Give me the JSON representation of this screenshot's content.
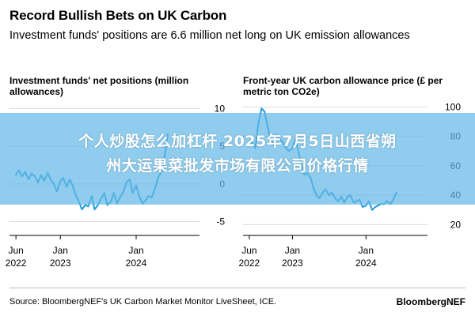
{
  "header": {
    "title": "Record Bullish Bets on UK Carbon",
    "subtitle": "Investment funds' positions are 6.6 million net long on UK emission allowances"
  },
  "banner": {
    "line1": "个人炒股怎么加杠杆 2025年7月5日山西省朔",
    "line2": "州大运果菜批发市场有限公司价格行情"
  },
  "footer": {
    "source": "Source: BloombergNEF's UK Carbon Market Monitor LiveSheet, ICE.",
    "brand": "BloombergNEF"
  },
  "chart_data": [
    {
      "type": "line",
      "title": "Investment funds' net positions (million allowances)",
      "color": "#1f9bde",
      "y_ticks": [
        10,
        5,
        0,
        -5
      ],
      "ylim": [
        -6,
        11
      ],
      "xlim": [
        "2022-05-01",
        "2024-11-01"
      ],
      "x_ticks": [
        {
          "x": "2022-06-01",
          "line1": "Jun",
          "line2": "2022"
        },
        {
          "x": "2023-01-01",
          "line1": "Jan",
          "line2": "2023"
        },
        {
          "x": "2024-01-01",
          "line1": "Jan",
          "line2": "2024"
        }
      ],
      "series": [
        {
          "x": [
            "2022-06-01",
            "2022-06-15",
            "2022-07-01",
            "2022-07-15",
            "2022-08-01",
            "2022-08-15",
            "2022-09-01",
            "2022-09-15",
            "2022-10-01",
            "2022-10-15",
            "2022-11-01",
            "2022-11-15",
            "2022-12-01",
            "2022-12-15",
            "2023-01-01",
            "2023-01-15",
            "2023-02-01",
            "2023-02-15",
            "2023-03-01",
            "2023-03-15",
            "2023-04-01",
            "2023-04-15",
            "2023-05-01",
            "2023-05-15",
            "2023-06-01",
            "2023-06-15",
            "2023-07-01",
            "2023-07-15",
            "2023-08-01",
            "2023-08-15",
            "2023-09-01",
            "2023-09-15",
            "2023-10-01",
            "2023-10-15",
            "2023-11-01",
            "2023-11-15",
            "2023-12-01",
            "2023-12-15",
            "2024-01-01",
            "2024-01-15",
            "2024-02-01",
            "2024-02-15",
            "2024-03-01",
            "2024-03-15",
            "2024-04-01",
            "2024-04-15",
            "2024-05-01",
            "2024-05-15",
            "2024-06-01"
          ],
          "y": [
            1.2,
            1.8,
            1.0,
            1.6,
            0.6,
            1.4,
            1.0,
            0.2,
            1.2,
            0.4,
            1.5,
            0.6,
            0.0,
            -1.0,
            0.4,
            0.8,
            -0.4,
            0.6,
            -0.2,
            -1.4,
            -2.4,
            -3.4,
            -2.8,
            -3.0,
            -1.6,
            -3.4,
            -2.8,
            -2.0,
            -1.2,
            -2.8,
            -2.4,
            -1.2,
            -2.6,
            -1.8,
            -1.0,
            0.2,
            0.6,
            -1.2,
            -0.2,
            -1.6,
            -2.6,
            -2.2,
            -1.6,
            -1.8,
            -0.6,
            0.8,
            1.6,
            3.2,
            6.6
          ]
        }
      ]
    },
    {
      "type": "line",
      "title": "Front-year UK carbon allowance price (£ per metric ton CO2e)",
      "color": "#1f9bde",
      "y_ticks": [
        100,
        80,
        60,
        40,
        20
      ],
      "ylim": [
        17,
        104
      ],
      "xlim": [
        "2022-05-01",
        "2024-11-01"
      ],
      "x_ticks": [
        {
          "x": "2022-06-01",
          "line1": "Jun",
          "line2": "2022"
        },
        {
          "x": "2023-01-01",
          "line1": "Jan",
          "line2": "2023"
        },
        {
          "x": "2024-01-01",
          "line1": "Jan",
          "line2": "2024"
        }
      ],
      "series": [
        {
          "x": [
            "2022-06-01",
            "2022-06-15",
            "2022-07-01",
            "2022-07-15",
            "2022-08-01",
            "2022-08-15",
            "2022-09-01",
            "2022-09-15",
            "2022-10-01",
            "2022-10-15",
            "2022-11-01",
            "2022-11-15",
            "2022-12-01",
            "2022-12-15",
            "2023-01-01",
            "2023-01-15",
            "2023-02-01",
            "2023-02-15",
            "2023-03-01",
            "2023-03-15",
            "2023-04-01",
            "2023-04-15",
            "2023-05-01",
            "2023-05-15",
            "2023-06-01",
            "2023-06-15",
            "2023-07-01",
            "2023-07-15",
            "2023-08-01",
            "2023-08-15",
            "2023-09-01",
            "2023-09-15",
            "2023-10-01",
            "2023-10-15",
            "2023-11-01",
            "2023-11-15",
            "2023-12-01",
            "2023-12-15",
            "2024-01-01",
            "2024-01-15",
            "2024-02-01",
            "2024-02-15",
            "2024-03-01",
            "2024-03-15",
            "2024-04-01",
            "2024-04-15",
            "2024-05-01",
            "2024-05-15",
            "2024-06-01"
          ],
          "y": [
            74,
            76,
            72,
            88,
            99,
            97,
            86,
            78,
            74,
            81,
            78,
            76,
            72,
            70,
            72,
            78,
            69,
            60,
            54,
            55,
            52,
            45,
            40,
            38,
            42,
            44,
            40,
            42,
            38,
            36,
            39,
            35,
            39,
            40,
            35,
            36,
            37,
            32,
            33,
            36,
            30,
            32,
            33,
            34,
            34,
            36,
            34,
            37,
            42
          ]
        }
      ]
    }
  ]
}
